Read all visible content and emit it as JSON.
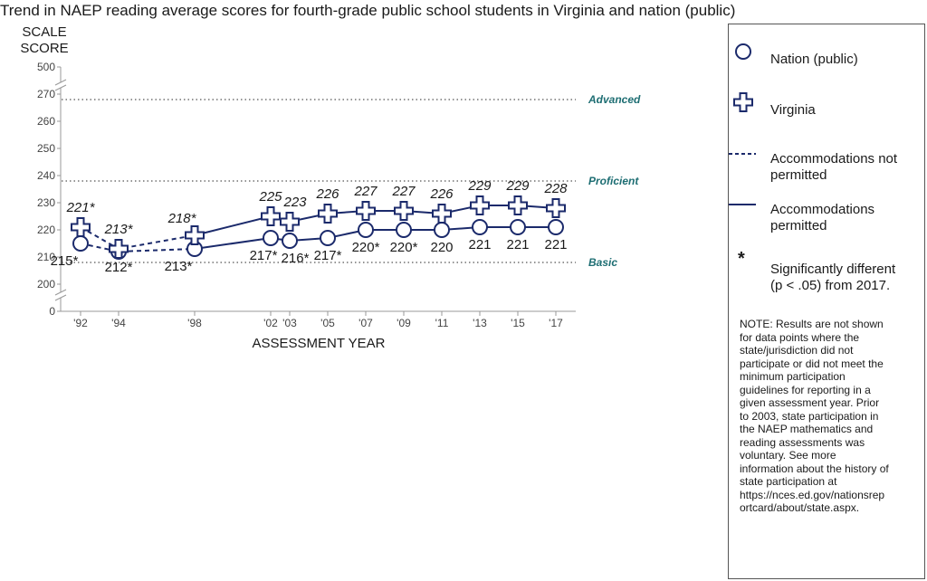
{
  "chart_data": {
    "type": "line",
    "title": "Trend in NAEP reading average scores for fourth-grade public school students in Virginia and nation (public)",
    "ylabel_lines": [
      "SCALE",
      "SCORE"
    ],
    "xlabel": "ASSESSMENT YEAR",
    "y_ticks": [
      200,
      210,
      220,
      230,
      240,
      250,
      260,
      270
    ],
    "y_top_tick": 500,
    "y_bottom_tick": 0,
    "ylim": [
      195,
      272
    ],
    "categories": [
      "'92",
      "'94",
      "'98",
      "'02",
      "'03",
      "'05",
      "'07",
      "'09",
      "'11",
      "'13",
      "'15",
      "'17"
    ],
    "x_years": [
      1992,
      1994,
      1998,
      2002,
      2003,
      2005,
      2007,
      2009,
      2011,
      2013,
      2015,
      2017
    ],
    "achievement_levels": [
      {
        "name": "Advanced",
        "score": 268
      },
      {
        "name": "Proficient",
        "score": 238
      },
      {
        "name": "Basic",
        "score": 208
      }
    ],
    "series": [
      {
        "name": "Nation (public)",
        "marker": "circle",
        "values": [
          215,
          212,
          213,
          217,
          216,
          217,
          220,
          220,
          220,
          221,
          221,
          221
        ],
        "labels": [
          "215*",
          "212*",
          "213*",
          "217*",
          "216*",
          "217*",
          "220*",
          "220*",
          "220",
          "221",
          "221",
          "221"
        ],
        "label_position": [
          "below",
          "below",
          "below",
          "below",
          "below",
          "below",
          "below",
          "below",
          "below",
          "below",
          "below",
          "below"
        ]
      },
      {
        "name": "Virginia",
        "marker": "cross",
        "values": [
          221,
          213,
          218,
          225,
          223,
          226,
          227,
          227,
          226,
          229,
          229,
          228
        ],
        "labels": [
          "221*",
          "213*",
          "218*",
          "225",
          "223",
          "226",
          "227",
          "227",
          "226",
          "229",
          "229",
          "228"
        ],
        "label_position": [
          "above",
          "above",
          "above",
          "above",
          "above",
          "above",
          "above",
          "above",
          "above",
          "above",
          "above",
          "above"
        ]
      }
    ],
    "dashed_segment_end_index": 2,
    "colors": {
      "series": "#1b2a6b",
      "achievement": "#1e6e73",
      "axis": "#999999"
    }
  },
  "legend": {
    "nation": "Nation (public)",
    "virginia": "Virginia",
    "not_permitted": "Accommodations not permitted",
    "permitted": "Accommodations permitted",
    "asterisk": "*",
    "significance": "Significantly different (p < .05) from 2017.",
    "note": "NOTE: Results are not shown for data points where the state/jurisdiction did not participate or did not meet the minimum participation guidelines for reporting in a given assessment year. Prior to 2003, state participation in the NAEP mathematics and reading assessments was voluntary. See more information about the history of state participation at https://nces.ed.gov/nationsreportcard/about/state.aspx."
  }
}
